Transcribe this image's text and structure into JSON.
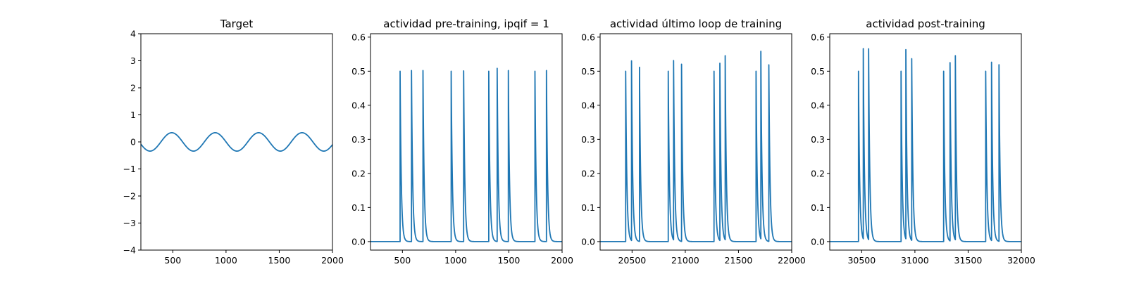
{
  "chart_data": [
    {
      "type": "line",
      "title": "Target",
      "xlim": [
        200,
        2000
      ],
      "ylim": [
        -4,
        4
      ],
      "xticks": [
        "500",
        "1000",
        "1500",
        "2000"
      ],
      "yticks": [
        "−4",
        "−3",
        "−2",
        "−1",
        "0",
        "1",
        "2",
        "3",
        "4"
      ],
      "series": [
        {
          "color": "#1f77b4",
          "amplitude": 0.34,
          "period": 408,
          "peaks_x": [
            490,
            898,
            1306,
            1714
          ],
          "troughs_x": [
            286,
            694,
            1102,
            1510,
            1918
          ]
        }
      ]
    },
    {
      "type": "line",
      "title": "actividad pre-training, ipqif = 1",
      "xlim": [
        200,
        2000
      ],
      "ylim": [
        -0.025,
        0.61
      ],
      "xticks": [
        "500",
        "1000",
        "1500",
        "2000"
      ],
      "yticks": [
        "0.0",
        "0.1",
        "0.2",
        "0.3",
        "0.4",
        "0.5",
        "0.6"
      ],
      "series": [
        {
          "color": "#1f77b4",
          "baseline": 0.0,
          "spikes": [
            {
              "x": 478,
              "peak": 0.5
            },
            {
              "x": 585,
              "peak": 0.502
            },
            {
              "x": 693,
              "peak": 0.502
            },
            {
              "x": 958,
              "peak": 0.5
            },
            {
              "x": 1075,
              "peak": 0.501
            },
            {
              "x": 1311,
              "peak": 0.5
            },
            {
              "x": 1390,
              "peak": 0.508
            },
            {
              "x": 1495,
              "peak": 0.502
            },
            {
              "x": 1745,
              "peak": 0.5
            },
            {
              "x": 1853,
              "peak": 0.502
            }
          ]
        }
      ]
    },
    {
      "type": "line",
      "title": "actividad último loop de training",
      "xlim": [
        20200,
        22000
      ],
      "ylim": [
        -0.025,
        0.61
      ],
      "xticks": [
        "20500",
        "21000",
        "21500",
        "22000"
      ],
      "yticks": [
        "0.0",
        "0.1",
        "0.2",
        "0.3",
        "0.4",
        "0.5",
        "0.6"
      ],
      "series": [
        {
          "color": "#1f77b4",
          "baseline": 0.0,
          "spikes": [
            {
              "x": 20440,
              "peak": 0.5
            },
            {
              "x": 20495,
              "peak": 0.527
            },
            {
              "x": 20570,
              "peak": 0.511
            },
            {
              "x": 20840,
              "peak": 0.5
            },
            {
              "x": 20890,
              "peak": 0.526
            },
            {
              "x": 20965,
              "peak": 0.52
            },
            {
              "x": 21270,
              "peak": 0.5
            },
            {
              "x": 21325,
              "peak": 0.52
            },
            {
              "x": 21375,
              "peak": 0.54
            },
            {
              "x": 21665,
              "peak": 0.5
            },
            {
              "x": 21710,
              "peak": 0.55
            },
            {
              "x": 21785,
              "peak": 0.518
            }
          ]
        }
      ]
    },
    {
      "type": "line",
      "title": "actividad post-training",
      "xlim": [
        30200,
        32000
      ],
      "ylim": [
        -0.025,
        0.61
      ],
      "xticks": [
        "30500",
        "31000",
        "31500",
        "32000"
      ],
      "yticks": [
        "0.0",
        "0.1",
        "0.2",
        "0.3",
        "0.4",
        "0.5",
        "0.6"
      ],
      "series": [
        {
          "color": "#1f77b4",
          "baseline": 0.0,
          "spikes": [
            {
              "x": 30470,
              "peak": 0.5
            },
            {
              "x": 30515,
              "peak": 0.558
            },
            {
              "x": 30565,
              "peak": 0.56
            },
            {
              "x": 30870,
              "peak": 0.5
            },
            {
              "x": 30915,
              "peak": 0.555
            },
            {
              "x": 30970,
              "peak": 0.533
            },
            {
              "x": 31270,
              "peak": 0.5
            },
            {
              "x": 31330,
              "peak": 0.523
            },
            {
              "x": 31380,
              "peak": 0.54
            },
            {
              "x": 31665,
              "peak": 0.5
            },
            {
              "x": 31720,
              "peak": 0.523
            },
            {
              "x": 31790,
              "peak": 0.518
            }
          ]
        }
      ]
    }
  ]
}
